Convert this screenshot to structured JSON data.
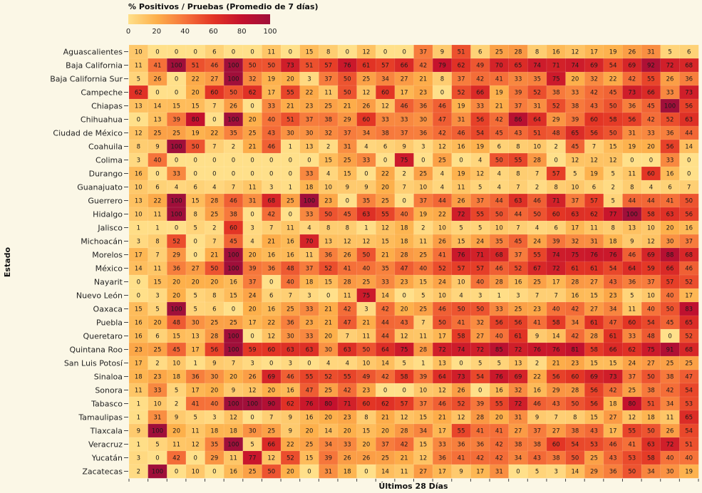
{
  "chart_data": {
    "type": "heatmap",
    "title": "% Positivos / Pruebas (Promedio de 7 días)",
    "xlabel": "Últimos 28 Días",
    "ylabel": "Estado",
    "legend": {
      "position": "top-left",
      "range": [
        0,
        100
      ],
      "ticks": [
        "0",
        "20",
        "40",
        "60",
        "80",
        "100"
      ],
      "colors": [
        "#ffe08a",
        "#fdb04b",
        "#f6733a",
        "#e33525",
        "#c4112d",
        "#a00f3a"
      ]
    },
    "rows": [
      "Aguascalientes",
      "Baja California",
      "Baja California Sur",
      "Campeche",
      "Chiapas",
      "Chihuahua",
      "Ciudad de México",
      "Coahuila",
      "Colima",
      "Durango",
      "Guanajuato",
      "Guerrero",
      "Hidalgo",
      "Jalisco",
      "Michoacán",
      "Morelos",
      "México",
      "Nayarit",
      "Nuevo León",
      "Oaxaca",
      "Puebla",
      "Queretaro",
      "Quintana Roo",
      "San Luis Potosí",
      "Sinaloa",
      "Sonora",
      "Tabasco",
      "Tamaulipas",
      "Tlaxcala",
      "Veracruz",
      "Yucatán",
      "Zacatecas"
    ],
    "values": [
      [
        10,
        0,
        0,
        0,
        6,
        0,
        0,
        11,
        0,
        15,
        8,
        0,
        12,
        0,
        0,
        37,
        9,
        51,
        6,
        25,
        28,
        8,
        16,
        12,
        17,
        19,
        26,
        31,
        5,
        6
      ],
      [
        11,
        41,
        100,
        51,
        46,
        100,
        50,
        50,
        73,
        51,
        57,
        76,
        61,
        57,
        66,
        42,
        79,
        62,
        49,
        70,
        65,
        74,
        71,
        74,
        69,
        54,
        69,
        92,
        72,
        68
      ],
      [
        5,
        26,
        0,
        22,
        27,
        100,
        32,
        19,
        20,
        3,
        37,
        50,
        25,
        34,
        27,
        21,
        8,
        37,
        42,
        41,
        33,
        35,
        75,
        20,
        32,
        22,
        42,
        55,
        26,
        36
      ],
      [
        62,
        0,
        0,
        20,
        60,
        50,
        62,
        17,
        55,
        22,
        11,
        50,
        12,
        60,
        17,
        23,
        0,
        52,
        66,
        19,
        39,
        52,
        38,
        33,
        42,
        45,
        73,
        66,
        33,
        73
      ],
      [
        13,
        14,
        15,
        15,
        7,
        26,
        0,
        33,
        21,
        23,
        25,
        21,
        26,
        12,
        46,
        36,
        46,
        19,
        33,
        21,
        37,
        31,
        52,
        38,
        43,
        50,
        36,
        45,
        100,
        56
      ],
      [
        0,
        13,
        39,
        80,
        0,
        100,
        20,
        40,
        51,
        37,
        38,
        29,
        60,
        33,
        33,
        30,
        47,
        31,
        56,
        42,
        86,
        64,
        29,
        39,
        60,
        58,
        56,
        42,
        52,
        63
      ],
      [
        12,
        25,
        25,
        19,
        22,
        35,
        25,
        43,
        30,
        30,
        32,
        37,
        34,
        38,
        37,
        36,
        42,
        46,
        54,
        45,
        43,
        51,
        48,
        65,
        56,
        50,
        31,
        33,
        36,
        44
      ],
      [
        8,
        9,
        100,
        50,
        7,
        2,
        21,
        46,
        1,
        13,
        2,
        31,
        4,
        6,
        9,
        3,
        12,
        16,
        19,
        6,
        8,
        10,
        2,
        45,
        7,
        15,
        19,
        20,
        56,
        14
      ],
      [
        3,
        40,
        0,
        0,
        0,
        0,
        0,
        0,
        0,
        0,
        15,
        25,
        33,
        0,
        75,
        0,
        25,
        0,
        4,
        50,
        55,
        28,
        0,
        12,
        12,
        12,
        0,
        0,
        33,
        0
      ],
      [
        16,
        0,
        33,
        0,
        0,
        0,
        0,
        0,
        0,
        33,
        4,
        15,
        0,
        22,
        2,
        25,
        4,
        19,
        12,
        4,
        8,
        7,
        57,
        5,
        19,
        5,
        11,
        60,
        16,
        0
      ],
      [
        10,
        6,
        4,
        6,
        4,
        7,
        11,
        3,
        1,
        18,
        10,
        9,
        9,
        20,
        7,
        10,
        4,
        11,
        5,
        4,
        7,
        2,
        8,
        10,
        6,
        2,
        8,
        4,
        6,
        7
      ],
      [
        13,
        22,
        100,
        15,
        28,
        46,
        31,
        68,
        25,
        100,
        23,
        0,
        35,
        25,
        0,
        37,
        44,
        26,
        37,
        44,
        63,
        46,
        71,
        37,
        57,
        5,
        44,
        44,
        41,
        50
      ],
      [
        10,
        11,
        100,
        8,
        25,
        38,
        0,
        42,
        0,
        33,
        50,
        45,
        63,
        55,
        40,
        19,
        22,
        72,
        55,
        50,
        44,
        50,
        60,
        63,
        62,
        77,
        100,
        58,
        63,
        56
      ],
      [
        1,
        1,
        0,
        5,
        2,
        60,
        3,
        7,
        11,
        4,
        8,
        8,
        1,
        12,
        18,
        2,
        10,
        5,
        5,
        10,
        7,
        4,
        6,
        17,
        11,
        8,
        13,
        10,
        20,
        16
      ],
      [
        3,
        8,
        52,
        0,
        7,
        45,
        4,
        21,
        16,
        70,
        13,
        12,
        12,
        15,
        18,
        11,
        26,
        15,
        24,
        35,
        45,
        24,
        39,
        32,
        31,
        18,
        9,
        12,
        30,
        37
      ],
      [
        17,
        7,
        29,
        0,
        21,
        100,
        20,
        16,
        16,
        11,
        36,
        26,
        50,
        21,
        28,
        25,
        41,
        76,
        71,
        68,
        37,
        55,
        74,
        75,
        76,
        76,
        46,
        69,
        88,
        68
      ],
      [
        14,
        11,
        36,
        27,
        50,
        100,
        39,
        36,
        48,
        37,
        52,
        41,
        40,
        35,
        47,
        40,
        52,
        57,
        57,
        46,
        52,
        67,
        72,
        61,
        61,
        54,
        64,
        59,
        66,
        46
      ],
      [
        0,
        15,
        20,
        20,
        20,
        16,
        37,
        0,
        40,
        18,
        15,
        28,
        25,
        33,
        23,
        15,
        24,
        10,
        40,
        28,
        16,
        25,
        17,
        28,
        27,
        43,
        36,
        37,
        57,
        52
      ],
      [
        0,
        3,
        20,
        5,
        8,
        15,
        24,
        6,
        7,
        3,
        0,
        11,
        75,
        14,
        0,
        5,
        10,
        4,
        3,
        1,
        3,
        7,
        7,
        16,
        15,
        23,
        5,
        10,
        40,
        17
      ],
      [
        15,
        5,
        100,
        5,
        6,
        0,
        20,
        16,
        25,
        33,
        21,
        42,
        3,
        42,
        20,
        25,
        46,
        50,
        50,
        33,
        25,
        23,
        40,
        42,
        27,
        34,
        11,
        40,
        50,
        83
      ],
      [
        16,
        20,
        48,
        30,
        25,
        25,
        17,
        22,
        36,
        23,
        21,
        47,
        21,
        44,
        43,
        7,
        50,
        41,
        32,
        56,
        56,
        41,
        58,
        34,
        61,
        47,
        60,
        54,
        45,
        65
      ],
      [
        16,
        6,
        15,
        13,
        28,
        100,
        0,
        12,
        30,
        33,
        20,
        7,
        11,
        44,
        12,
        11,
        17,
        58,
        27,
        40,
        61,
        9,
        14,
        42,
        28,
        61,
        33,
        48,
        0,
        52
      ],
      [
        23,
        25,
        45,
        17,
        56,
        100,
        59,
        60,
        63,
        63,
        30,
        63,
        50,
        64,
        75,
        28,
        72,
        74,
        72,
        85,
        72,
        76,
        76,
        81,
        58,
        66,
        62,
        75,
        91,
        68
      ],
      [
        17,
        2,
        10,
        1,
        9,
        7,
        3,
        0,
        3,
        0,
        4,
        4,
        10,
        14,
        5,
        1,
        13,
        0,
        5,
        5,
        13,
        2,
        21,
        23,
        15,
        15,
        24,
        27,
        25,
        25
      ],
      [
        18,
        23,
        18,
        36,
        30,
        20,
        26,
        69,
        46,
        55,
        52,
        55,
        49,
        42,
        58,
        39,
        64,
        73,
        54,
        76,
        69,
        22,
        56,
        60,
        69,
        73,
        37,
        50,
        38,
        47
      ],
      [
        11,
        33,
        5,
        17,
        20,
        9,
        12,
        20,
        16,
        47,
        25,
        42,
        23,
        0,
        0,
        10,
        12,
        26,
        0,
        16,
        32,
        16,
        29,
        28,
        56,
        42,
        25,
        38,
        42,
        54
      ],
      [
        1,
        10,
        2,
        41,
        40,
        100,
        100,
        90,
        62,
        76,
        80,
        71,
        60,
        62,
        57,
        37,
        46,
        52,
        39,
        55,
        72,
        46,
        43,
        50,
        56,
        18,
        80,
        51,
        34,
        53
      ],
      [
        1,
        31,
        9,
        5,
        3,
        12,
        0,
        7,
        9,
        16,
        20,
        23,
        8,
        21,
        12,
        15,
        21,
        12,
        28,
        20,
        31,
        9,
        7,
        8,
        15,
        27,
        12,
        18,
        11,
        65
      ],
      [
        9,
        100,
        20,
        11,
        18,
        18,
        30,
        25,
        9,
        20,
        14,
        20,
        15,
        20,
        28,
        34,
        17,
        55,
        41,
        41,
        27,
        37,
        27,
        38,
        43,
        17,
        55,
        50,
        26,
        54
      ],
      [
        1,
        5,
        11,
        12,
        35,
        100,
        5,
        66,
        22,
        25,
        34,
        33,
        20,
        37,
        42,
        15,
        33,
        36,
        36,
        42,
        38,
        38,
        60,
        54,
        53,
        46,
        41,
        63,
        72,
        51
      ],
      [
        3,
        0,
        42,
        0,
        29,
        11,
        77,
        12,
        52,
        15,
        39,
        26,
        26,
        25,
        21,
        12,
        36,
        41,
        42,
        42,
        34,
        43,
        38,
        50,
        25,
        43,
        53,
        58,
        40,
        40
      ],
      [
        2,
        100,
        0,
        10,
        0,
        16,
        25,
        50,
        20,
        0,
        31,
        18,
        0,
        14,
        11,
        27,
        17,
        9,
        17,
        31,
        0,
        5,
        3,
        14,
        29,
        36,
        50,
        34,
        30,
        19
      ]
    ]
  }
}
